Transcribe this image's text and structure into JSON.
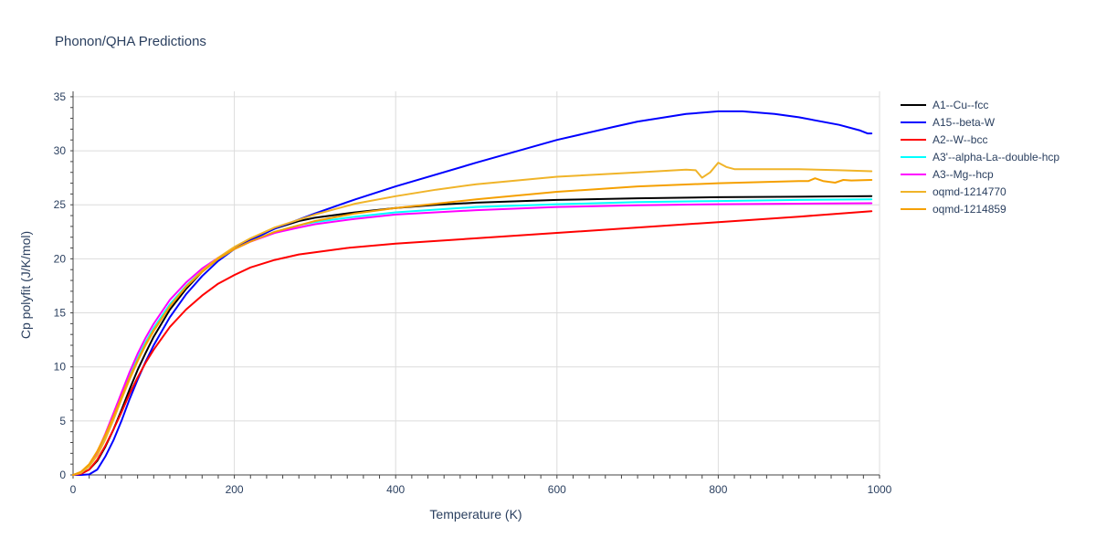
{
  "chart_data": {
    "type": "line",
    "title": "Phonon/QHA Predictions",
    "xlabel": "Temperature (K)",
    "ylabel": "Cp polyfit (J/K/mol)",
    "xlim": [
      0,
      1000
    ],
    "ylim": [
      0,
      35.5
    ],
    "xticks": [
      0,
      200,
      400,
      600,
      800,
      1000
    ],
    "yticks": [
      0,
      5,
      10,
      15,
      20,
      25,
      30,
      35
    ],
    "grid": true,
    "legend_position": "right",
    "series": [
      {
        "name": "A1--Cu--fcc",
        "color": "#000000",
        "x": [
          0,
          10,
          20,
          30,
          40,
          50,
          60,
          70,
          80,
          90,
          100,
          120,
          140,
          160,
          180,
          200,
          220,
          250,
          280,
          300,
          350,
          400,
          450,
          500,
          600,
          700,
          800,
          900,
          990
        ],
        "y": [
          0,
          0.1,
          0.5,
          1.3,
          2.6,
          4.2,
          6.0,
          7.9,
          9.7,
          11.3,
          12.8,
          15.3,
          17.2,
          18.8,
          20.0,
          21.0,
          21.8,
          22.8,
          23.5,
          23.8,
          24.3,
          24.7,
          25.0,
          25.2,
          25.45,
          25.6,
          25.7,
          25.75,
          25.8
        ]
      },
      {
        "name": "A15--beta-W",
        "color": "#0000ff",
        "x": [
          0,
          10,
          20,
          30,
          40,
          50,
          60,
          70,
          80,
          90,
          100,
          120,
          140,
          160,
          180,
          200,
          220,
          250,
          300,
          350,
          400,
          500,
          600,
          670,
          700,
          760,
          800,
          830,
          870,
          900,
          950,
          975,
          985,
          990
        ],
        "y": [
          0,
          0,
          0.05,
          0.5,
          1.7,
          3.2,
          5.0,
          7.0,
          8.8,
          10.5,
          12.0,
          14.6,
          16.7,
          18.4,
          19.8,
          20.9,
          21.7,
          22.8,
          24.2,
          25.5,
          26.7,
          28.9,
          31.0,
          32.2,
          32.7,
          33.4,
          33.65,
          33.65,
          33.4,
          33.1,
          32.4,
          31.9,
          31.6,
          31.6
        ]
      },
      {
        "name": "A2--W--bcc",
        "color": "#ff0000",
        "x": [
          0,
          10,
          20,
          30,
          40,
          50,
          60,
          70,
          80,
          90,
          100,
          120,
          140,
          160,
          180,
          200,
          220,
          250,
          280,
          300,
          340,
          400,
          500,
          600,
          700,
          800,
          900,
          990
        ],
        "y": [
          0,
          0.1,
          0.5,
          1.4,
          2.7,
          4.2,
          5.8,
          7.5,
          9.0,
          10.4,
          11.6,
          13.7,
          15.3,
          16.6,
          17.7,
          18.5,
          19.2,
          19.9,
          20.4,
          20.6,
          21.0,
          21.4,
          21.9,
          22.4,
          22.9,
          23.4,
          23.9,
          24.4
        ]
      },
      {
        "name": "A3'--alpha-La--double-hcp",
        "color": "#00ffff",
        "x": [
          0,
          10,
          20,
          30,
          40,
          50,
          60,
          70,
          80,
          90,
          100,
          120,
          140,
          160,
          180,
          200,
          220,
          250,
          280,
          300,
          350,
          400,
          500,
          600,
          700,
          800,
          900,
          990
        ],
        "y": [
          0,
          0.2,
          0.8,
          1.9,
          3.5,
          5.3,
          7.2,
          9.1,
          10.8,
          12.3,
          13.6,
          15.8,
          17.5,
          18.9,
          20.0,
          20.9,
          21.6,
          22.5,
          23.1,
          23.4,
          23.9,
          24.3,
          24.8,
          25.05,
          25.25,
          25.35,
          25.45,
          25.5
        ]
      },
      {
        "name": "A3--Mg--hcp",
        "color": "#ff00ff",
        "x": [
          0,
          10,
          20,
          30,
          40,
          50,
          60,
          70,
          80,
          90,
          100,
          120,
          140,
          160,
          180,
          200,
          220,
          250,
          280,
          300,
          350,
          400,
          500,
          600,
          700,
          800,
          900,
          990
        ],
        "y": [
          0,
          0.2,
          0.9,
          2.1,
          3.8,
          5.7,
          7.6,
          9.5,
          11.2,
          12.7,
          14.0,
          16.2,
          17.8,
          19.1,
          20.1,
          20.9,
          21.6,
          22.4,
          22.9,
          23.2,
          23.7,
          24.1,
          24.5,
          24.8,
          24.95,
          25.05,
          25.1,
          25.15
        ]
      },
      {
        "name": "oqmd-1214770",
        "color": "#f0b429",
        "x": [
          0,
          10,
          20,
          30,
          40,
          50,
          60,
          70,
          80,
          90,
          100,
          120,
          140,
          160,
          180,
          200,
          220,
          250,
          300,
          350,
          400,
          450,
          500,
          600,
          700,
          760,
          772,
          780,
          790,
          800,
          810,
          820,
          850,
          900,
          950,
          990
        ],
        "y": [
          0,
          0.2,
          0.8,
          1.8,
          3.3,
          5.1,
          7.0,
          8.8,
          10.5,
          12.0,
          13.3,
          15.6,
          17.4,
          18.9,
          20.1,
          21.1,
          21.9,
          22.9,
          24.1,
          25.1,
          25.8,
          26.4,
          26.9,
          27.6,
          28.0,
          28.25,
          28.2,
          27.5,
          28.0,
          28.9,
          28.5,
          28.3,
          28.3,
          28.3,
          28.2,
          28.1
        ]
      },
      {
        "name": "oqmd-1214859",
        "color": "#f5a000",
        "x": [
          0,
          10,
          20,
          30,
          40,
          50,
          60,
          70,
          80,
          90,
          100,
          120,
          140,
          160,
          180,
          200,
          220,
          250,
          300,
          350,
          400,
          450,
          500,
          600,
          700,
          800,
          900,
          912,
          920,
          930,
          945,
          955,
          965,
          990
        ],
        "y": [
          0,
          0.3,
          1.0,
          2.2,
          3.7,
          5.4,
          7.2,
          9.0,
          10.6,
          12.1,
          13.4,
          15.6,
          17.4,
          18.8,
          20.0,
          20.9,
          21.6,
          22.5,
          23.5,
          24.2,
          24.7,
          25.1,
          25.5,
          26.2,
          26.7,
          27.0,
          27.2,
          27.2,
          27.45,
          27.2,
          27.05,
          27.3,
          27.25,
          27.3
        ]
      }
    ]
  }
}
